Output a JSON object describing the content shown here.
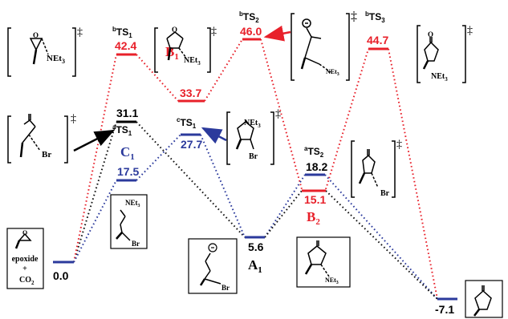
{
  "colors": {
    "black": "#000000",
    "red": "#e8202a",
    "blue": "#2b3a9c",
    "dot_black": "#111111"
  },
  "levels": {
    "reactant": {
      "energy": "0.0"
    },
    "aTS1": {
      "energy": "31.1",
      "label_sup": "a",
      "label": "TS",
      "label_sub": "1"
    },
    "bTS1": {
      "energy": "42.4",
      "label_sup": "b",
      "label": "TS",
      "label_sub": "1"
    },
    "cTS1": {
      "energy": "27.7",
      "label_sup": "c",
      "label": "TS",
      "label_sub": "1"
    },
    "C1": {
      "energy": "17.5",
      "label": "C",
      "label_sub": "1"
    },
    "B1": {
      "energy": "33.7",
      "label": "B",
      "label_sub": "1"
    },
    "A1": {
      "energy": "5.6",
      "label": "A",
      "label_sub": "1"
    },
    "bTS2": {
      "energy": "46.0",
      "label_sup": "b",
      "label": "TS",
      "label_sub": "2"
    },
    "aTS2": {
      "energy": "18.2",
      "label_sup": "a",
      "label": "TS",
      "label_sub": "2"
    },
    "B2": {
      "energy": "15.1",
      "label": "B",
      "label_sub": "2"
    },
    "bTS3": {
      "energy": "44.7",
      "label_sup": "b",
      "label": "TS",
      "label_sub": "3"
    },
    "product": {
      "energy": "-7.1"
    }
  },
  "structures": {
    "nEt3": "NEt",
    "three": "3",
    "br": "Br",
    "epoxide": "epoxide",
    "plus": "+",
    "co2": "CO",
    "two": "2",
    "o": "O",
    "dagger": "‡"
  }
}
